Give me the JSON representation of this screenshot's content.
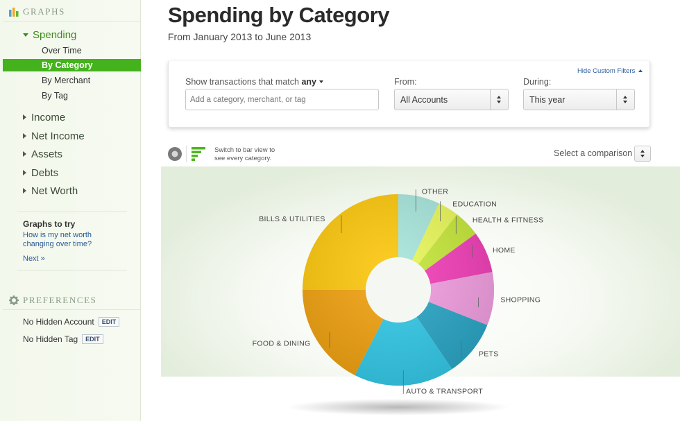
{
  "sidebar": {
    "graphs_header": "GRAPHS",
    "spending": {
      "label": "Spending",
      "items": [
        "Over Time",
        "By Category",
        "By Merchant",
        "By Tag"
      ]
    },
    "top_items": [
      "Income",
      "Net Income",
      "Assets",
      "Debts",
      "Net Worth"
    ],
    "graphs_to_try": {
      "heading": "Graphs to try",
      "question": "How is my net worth changing over time?",
      "next": "Next »"
    },
    "preferences_header": "PREFERENCES",
    "preferences": [
      {
        "label": "No Hidden Account",
        "button": "EDIT"
      },
      {
        "label": "No Hidden Tag",
        "button": "EDIT"
      }
    ]
  },
  "main": {
    "title": "Spending by Category",
    "subtitle": "From January 2013 to June 2013"
  },
  "filters": {
    "hide_link": "Hide Custom Filters",
    "match_label_prefix": "Show transactions that match",
    "match_value": "any",
    "search_placeholder": "Add a category, merchant, or tag",
    "from_label": "From:",
    "from_value": "All Accounts",
    "during_label": "During:",
    "during_value": "This year"
  },
  "view_toggle": {
    "hint": "Switch to bar view to see every category."
  },
  "comparison": {
    "label": "Select a comparison"
  },
  "chart_data": {
    "type": "pie",
    "style": "donut",
    "title": "",
    "categories": [
      "OTHER",
      "EDUCATION",
      "HEALTH & FITNESS",
      "HOME",
      "SHOPPING",
      "PETS",
      "AUTO & TRANSPORT",
      "FOOD & DINING",
      "BILLS & UTILITIES"
    ],
    "values": [
      7,
      3.5,
      4.5,
      7,
      9,
      9.5,
      17,
      17.5,
      25
    ],
    "colors": [
      "#a7e6dc",
      "#eaf85a",
      "#c6e83a",
      "#f23fb8",
      "#f29ee0",
      "#2aa6c6",
      "#33c9e8",
      "#f0a10f",
      "#fcc70c"
    ]
  }
}
